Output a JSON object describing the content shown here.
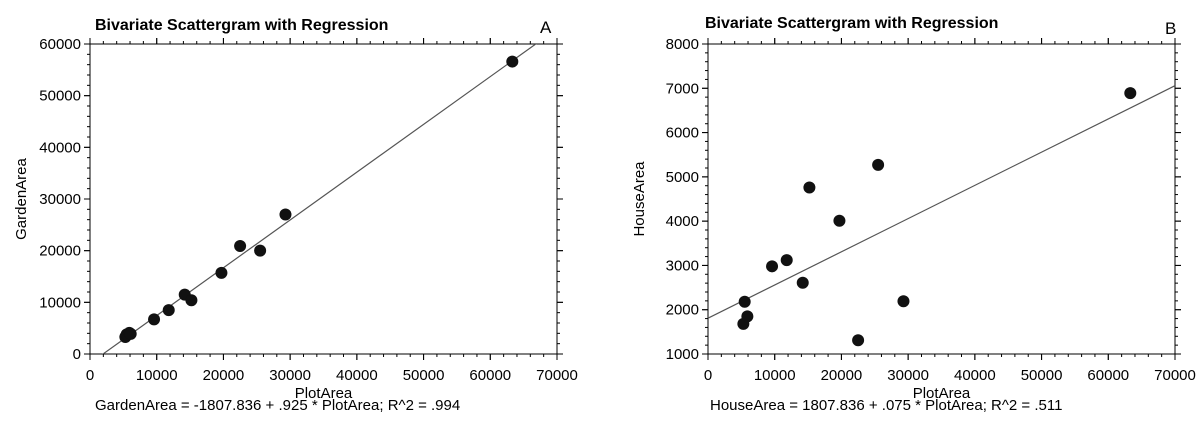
{
  "chart_data": [
    {
      "type": "scatter",
      "panel_label": "A",
      "title": "Bivariate Scattergram with Regression",
      "xlabel": "PlotArea",
      "ylabel": "GardenArea",
      "xlim": [
        0,
        70000
      ],
      "ylim": [
        0,
        60000
      ],
      "xticks": [
        "0",
        "10000",
        "20000",
        "30000",
        "40000",
        "50000",
        "60000",
        "70000"
      ],
      "yticks": [
        "0",
        "10000",
        "20000",
        "30000",
        "40000",
        "50000",
        "60000"
      ],
      "regression": {
        "intercept": -1807.836,
        "slope": 0.925
      },
      "equation": "GardenArea = -1807.836 + .925 * PlotArea; R^2 = .994",
      "points": [
        [
          5300,
          3300
        ],
        [
          5500,
          3800
        ],
        [
          5900,
          4100
        ],
        [
          6100,
          3900
        ],
        [
          9600,
          6700
        ],
        [
          11800,
          8500
        ],
        [
          14200,
          11500
        ],
        [
          15200,
          10400
        ],
        [
          19700,
          15700
        ],
        [
          22500,
          20900
        ],
        [
          25500,
          20000
        ],
        [
          29300,
          27000
        ],
        [
          63300,
          56600
        ]
      ],
      "grid": false,
      "marker_color": "#111111",
      "line_color": "#555555"
    },
    {
      "type": "scatter",
      "panel_label": "B",
      "title": "Bivariate Scattergram with Regression",
      "xlabel": "PlotArea",
      "ylabel": "HouseArea",
      "xlim": [
        0,
        70000
      ],
      "ylim": [
        1000,
        8000
      ],
      "xticks": [
        "0",
        "10000",
        "20000",
        "30000",
        "40000",
        "50000",
        "60000",
        "70000"
      ],
      "yticks": [
        "1000",
        "2000",
        "3000",
        "4000",
        "5000",
        "6000",
        "7000",
        "8000"
      ],
      "regression": {
        "intercept": 1807.836,
        "slope": 0.075
      },
      "equation": "HouseArea = 1807.836 + .075 * PlotArea; R^2 = .511",
      "points": [
        [
          5300,
          1680
        ],
        [
          5500,
          2180
        ],
        [
          5900,
          1850
        ],
        [
          9600,
          2980
        ],
        [
          11800,
          3120
        ],
        [
          14200,
          2610
        ],
        [
          15200,
          4760
        ],
        [
          19700,
          4010
        ],
        [
          22500,
          1310
        ],
        [
          25500,
          5270
        ],
        [
          29300,
          2190
        ],
        [
          63300,
          6890
        ]
      ],
      "grid": false,
      "marker_color": "#111111",
      "line_color": "#555555"
    }
  ]
}
